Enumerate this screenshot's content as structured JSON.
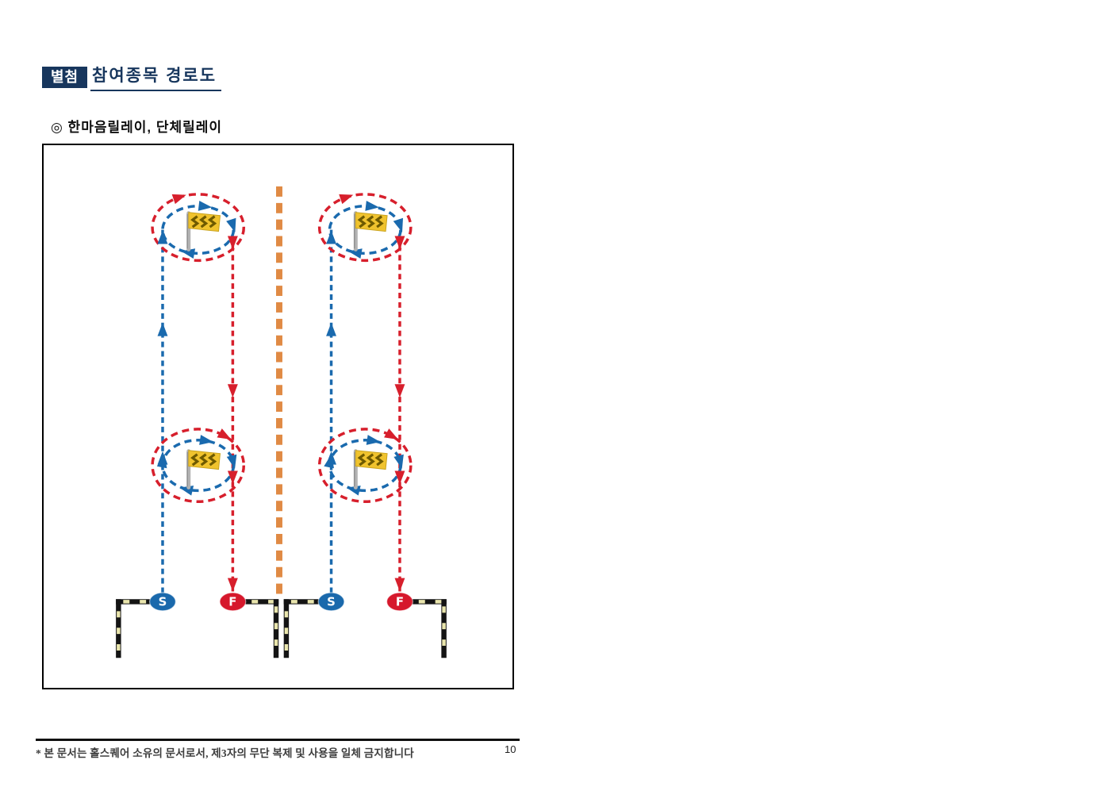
{
  "page": {
    "badge_label": "별첨",
    "title": "참여종목 경로도",
    "subtitle": "◎ 한마음릴레이, 단체릴레이",
    "footer_note": "* 본 문서는 홀스퀘어 소유의 문서로서, 제3자의 무단 복제 및 사용을 일체 금지합니다",
    "page_number": "10"
  },
  "diagram": {
    "start_label": "S",
    "finish_label": "F",
    "icons": [
      "windsock-flag-icon",
      "start-marker",
      "finish-marker",
      "direction-arrow-icon"
    ],
    "colors": {
      "start_path_blue": "#1a6aae",
      "finish_path_red": "#d71f2c",
      "center_line_orange": "#e08a44",
      "flag_yellow": "#f0c32e",
      "flag_chevron": "#6e5a00",
      "flag_edge": "#c9a31f",
      "pole_gray": "#b3b3b3",
      "barrier_black": "#141414",
      "barrier_yellow": "#eae6ad",
      "marker_start_fill": "#1a69ac",
      "marker_finish_fill": "#d6182c"
    }
  },
  "theme": {
    "navy": "#17365d",
    "footer_text": "#3d3d3d"
  }
}
